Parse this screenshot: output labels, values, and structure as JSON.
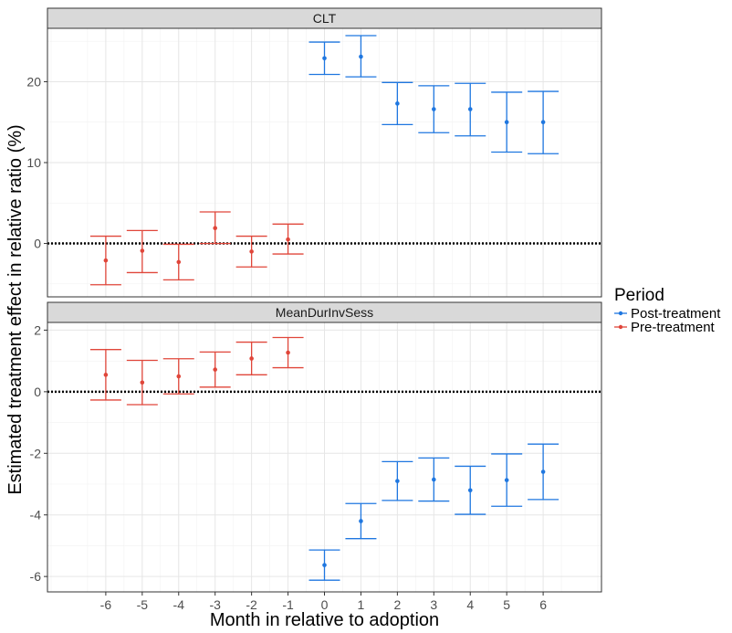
{
  "chart_data": {
    "type": "errorbar",
    "xlabel": "Month in relative to adoption",
    "ylabel": "Estimated treatment effect in relative ratio (%)",
    "x_ticks": [
      -6,
      -5,
      -4,
      -3,
      -2,
      -1,
      0,
      1,
      2,
      3,
      4,
      5,
      6
    ],
    "xlim": [
      -7.6,
      7.6
    ],
    "reference_line_y": 0,
    "legend": {
      "title": "Period",
      "entries": [
        {
          "label": "Post-treatment",
          "color": "#1f77e0"
        },
        {
          "label": "Pre-treatment",
          "color": "#e0463a"
        }
      ]
    },
    "panels": [
      {
        "title": "CLT",
        "ylim": [
          -6.6,
          26.6
        ],
        "y_ticks": [
          0,
          10,
          20
        ],
        "y_minor": [
          -5,
          5,
          15,
          25
        ],
        "points": [
          {
            "x": -6,
            "y": -2.1,
            "lo": -5.1,
            "hi": 0.9,
            "period": "Pre-treatment"
          },
          {
            "x": -5,
            "y": -0.9,
            "lo": -3.6,
            "hi": 1.6,
            "period": "Pre-treatment"
          },
          {
            "x": -4,
            "y": -2.3,
            "lo": -4.5,
            "hi": -0.1,
            "period": "Pre-treatment"
          },
          {
            "x": -3,
            "y": 1.9,
            "lo": 0.0,
            "hi": 3.9,
            "period": "Pre-treatment"
          },
          {
            "x": -2,
            "y": -1.0,
            "lo": -2.9,
            "hi": 0.9,
            "period": "Pre-treatment"
          },
          {
            "x": -1,
            "y": 0.5,
            "lo": -1.3,
            "hi": 2.4,
            "period": "Pre-treatment"
          },
          {
            "x": 0,
            "y": 22.9,
            "lo": 20.9,
            "hi": 24.9,
            "period": "Post-treatment"
          },
          {
            "x": 1,
            "y": 23.1,
            "lo": 20.6,
            "hi": 25.7,
            "period": "Post-treatment"
          },
          {
            "x": 2,
            "y": 17.3,
            "lo": 14.7,
            "hi": 19.9,
            "period": "Post-treatment"
          },
          {
            "x": 3,
            "y": 16.6,
            "lo": 13.7,
            "hi": 19.5,
            "period": "Post-treatment"
          },
          {
            "x": 4,
            "y": 16.6,
            "lo": 13.3,
            "hi": 19.8,
            "period": "Post-treatment"
          },
          {
            "x": 5,
            "y": 15.0,
            "lo": 11.3,
            "hi": 18.7,
            "period": "Post-treatment"
          },
          {
            "x": 6,
            "y": 15.0,
            "lo": 11.1,
            "hi": 18.8,
            "period": "Post-treatment"
          }
        ]
      },
      {
        "title": "MeanDurInvSess",
        "ylim": [
          -6.5,
          2.25
        ],
        "y_ticks": [
          -6,
          -4,
          -2,
          0,
          2
        ],
        "y_minor": [
          -5,
          -3,
          -1,
          1
        ],
        "points": [
          {
            "x": -6,
            "y": 0.55,
            "lo": -0.27,
            "hi": 1.37,
            "period": "Pre-treatment"
          },
          {
            "x": -5,
            "y": 0.3,
            "lo": -0.42,
            "hi": 1.02,
            "period": "Pre-treatment"
          },
          {
            "x": -4,
            "y": 0.5,
            "lo": -0.07,
            "hi": 1.07,
            "period": "Pre-treatment"
          },
          {
            "x": -3,
            "y": 0.72,
            "lo": 0.15,
            "hi": 1.29,
            "period": "Pre-treatment"
          },
          {
            "x": -2,
            "y": 1.08,
            "lo": 0.55,
            "hi": 1.61,
            "period": "Pre-treatment"
          },
          {
            "x": -1,
            "y": 1.27,
            "lo": 0.78,
            "hi": 1.76,
            "period": "Pre-treatment"
          },
          {
            "x": 0,
            "y": -5.63,
            "lo": -6.12,
            "hi": -5.14,
            "period": "Post-treatment"
          },
          {
            "x": 1,
            "y": -4.2,
            "lo": -4.77,
            "hi": -3.63,
            "period": "Post-treatment"
          },
          {
            "x": 2,
            "y": -2.9,
            "lo": -3.53,
            "hi": -2.27,
            "period": "Post-treatment"
          },
          {
            "x": 3,
            "y": -2.85,
            "lo": -3.55,
            "hi": -2.15,
            "period": "Post-treatment"
          },
          {
            "x": 4,
            "y": -3.2,
            "lo": -3.98,
            "hi": -2.42,
            "period": "Post-treatment"
          },
          {
            "x": 5,
            "y": -2.87,
            "lo": -3.72,
            "hi": -2.02,
            "period": "Post-treatment"
          },
          {
            "x": 6,
            "y": -2.6,
            "lo": -3.5,
            "hi": -1.7,
            "period": "Post-treatment"
          }
        ]
      }
    ]
  }
}
